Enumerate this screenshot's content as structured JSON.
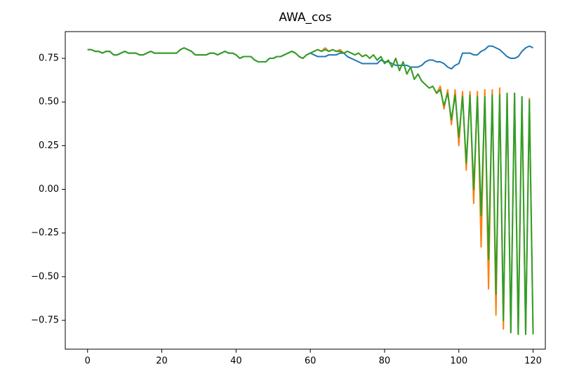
{
  "chart_data": {
    "type": "line",
    "title": "AWA_cos",
    "x": [
      0,
      1,
      2,
      3,
      4,
      5,
      6,
      7,
      8,
      9,
      10,
      11,
      12,
      13,
      14,
      15,
      16,
      17,
      18,
      19,
      20,
      21,
      22,
      23,
      24,
      25,
      26,
      27,
      28,
      29,
      30,
      31,
      32,
      33,
      34,
      35,
      36,
      37,
      38,
      39,
      40,
      41,
      42,
      43,
      44,
      45,
      46,
      47,
      48,
      49,
      50,
      51,
      52,
      53,
      54,
      55,
      56,
      57,
      58,
      59,
      60,
      61,
      62,
      63,
      64,
      65,
      66,
      67,
      68,
      69,
      70,
      71,
      72,
      73,
      74,
      75,
      76,
      77,
      78,
      79,
      80,
      81,
      82,
      83,
      84,
      85,
      86,
      87,
      88,
      89,
      90,
      91,
      92,
      93,
      94,
      95,
      96,
      97,
      98,
      99,
      100,
      101,
      102,
      103,
      104,
      105,
      106,
      107,
      108,
      109,
      110,
      111,
      112,
      113,
      114,
      115,
      116,
      117,
      118,
      119,
      120
    ],
    "series": [
      {
        "color": "#1f77b4",
        "values": [
          0.8,
          0.8,
          0.79,
          0.79,
          0.78,
          0.79,
          0.79,
          0.77,
          0.77,
          0.78,
          0.79,
          0.78,
          0.78,
          0.78,
          0.77,
          0.77,
          0.78,
          0.79,
          0.78,
          0.78,
          0.78,
          0.78,
          0.78,
          0.78,
          0.78,
          0.8,
          0.81,
          0.8,
          0.79,
          0.77,
          0.77,
          0.77,
          0.77,
          0.78,
          0.78,
          0.77,
          0.78,
          0.79,
          0.78,
          0.78,
          0.77,
          0.75,
          0.76,
          0.76,
          0.76,
          0.74,
          0.73,
          0.73,
          0.73,
          0.75,
          0.75,
          0.76,
          0.76,
          0.77,
          0.78,
          0.79,
          0.78,
          0.76,
          0.75,
          0.77,
          0.78,
          0.77,
          0.76,
          0.76,
          0.76,
          0.77,
          0.77,
          0.77,
          0.78,
          0.78,
          0.76,
          0.75,
          0.74,
          0.73,
          0.72,
          0.72,
          0.72,
          0.72,
          0.72,
          0.74,
          0.73,
          0.73,
          0.72,
          0.71,
          0.71,
          0.71,
          0.71,
          0.7,
          0.7,
          0.7,
          0.71,
          0.73,
          0.74,
          0.74,
          0.73,
          0.73,
          0.72,
          0.7,
          0.69,
          0.71,
          0.72,
          0.78,
          0.78,
          0.78,
          0.77,
          0.77,
          0.79,
          0.8,
          0.82,
          0.82,
          0.81,
          0.8,
          0.78,
          0.76,
          0.75,
          0.75,
          0.76,
          0.79,
          0.81,
          0.82,
          0.81
        ]
      },
      {
        "color": "#ff7f0e",
        "values": [
          0.8,
          0.8,
          0.79,
          0.79,
          0.78,
          0.79,
          0.79,
          0.77,
          0.77,
          0.78,
          0.79,
          0.78,
          0.78,
          0.78,
          0.77,
          0.77,
          0.78,
          0.79,
          0.78,
          0.78,
          0.78,
          0.78,
          0.78,
          0.78,
          0.78,
          0.8,
          0.81,
          0.8,
          0.79,
          0.77,
          0.77,
          0.77,
          0.77,
          0.78,
          0.78,
          0.77,
          0.78,
          0.79,
          0.78,
          0.78,
          0.77,
          0.75,
          0.76,
          0.76,
          0.76,
          0.74,
          0.73,
          0.73,
          0.73,
          0.75,
          0.75,
          0.76,
          0.76,
          0.77,
          0.78,
          0.79,
          0.78,
          0.76,
          0.75,
          0.77,
          0.78,
          0.79,
          0.8,
          0.79,
          0.81,
          0.79,
          0.8,
          0.79,
          0.8,
          0.78,
          0.79,
          0.78,
          0.77,
          0.78,
          0.76,
          0.77,
          0.75,
          0.77,
          0.74,
          0.76,
          0.72,
          0.74,
          0.7,
          0.75,
          0.68,
          0.73,
          0.66,
          0.7,
          0.63,
          0.66,
          0.62,
          0.6,
          0.58,
          0.59,
          0.55,
          0.59,
          0.46,
          0.57,
          0.37,
          0.57,
          0.25,
          0.56,
          0.11,
          0.56,
          -0.08,
          0.56,
          -0.33,
          0.57,
          -0.57,
          0.57,
          -0.72,
          0.58,
          -0.8,
          0.55,
          -0.82,
          0.55,
          -0.83,
          0.53,
          -0.83,
          0.52,
          -0.83
        ]
      },
      {
        "color": "#2ca02c",
        "values": [
          0.8,
          0.8,
          0.79,
          0.79,
          0.78,
          0.79,
          0.79,
          0.77,
          0.77,
          0.78,
          0.79,
          0.78,
          0.78,
          0.78,
          0.77,
          0.77,
          0.78,
          0.79,
          0.78,
          0.78,
          0.78,
          0.78,
          0.78,
          0.78,
          0.78,
          0.8,
          0.81,
          0.8,
          0.79,
          0.77,
          0.77,
          0.77,
          0.77,
          0.78,
          0.78,
          0.77,
          0.78,
          0.79,
          0.78,
          0.78,
          0.77,
          0.75,
          0.76,
          0.76,
          0.76,
          0.74,
          0.73,
          0.73,
          0.73,
          0.75,
          0.75,
          0.76,
          0.76,
          0.77,
          0.78,
          0.79,
          0.78,
          0.76,
          0.75,
          0.77,
          0.78,
          0.79,
          0.8,
          0.79,
          0.8,
          0.79,
          0.8,
          0.79,
          0.79,
          0.78,
          0.79,
          0.78,
          0.77,
          0.78,
          0.76,
          0.77,
          0.75,
          0.77,
          0.74,
          0.76,
          0.72,
          0.74,
          0.7,
          0.75,
          0.68,
          0.73,
          0.66,
          0.7,
          0.63,
          0.66,
          0.62,
          0.6,
          0.58,
          0.59,
          0.55,
          0.57,
          0.48,
          0.55,
          0.4,
          0.54,
          0.3,
          0.53,
          0.15,
          0.54,
          0.0,
          0.53,
          -0.15,
          0.53,
          -0.4,
          0.54,
          -0.6,
          0.54,
          -0.75,
          0.55,
          -0.82,
          0.55,
          -0.83,
          0.53,
          -0.83,
          0.51,
          -0.83
        ]
      }
    ],
    "xlim": [
      -6,
      123.3
    ],
    "ylim": [
      -0.915,
      0.903
    ],
    "xticks": [
      0,
      20,
      40,
      60,
      80,
      100,
      120
    ],
    "yticks": [
      {
        "value": 0.75,
        "label": "0.75"
      },
      {
        "value": 0.5,
        "label": "0.50"
      },
      {
        "value": 0.25,
        "label": "0.25"
      },
      {
        "value": 0,
        "label": "0.00"
      },
      {
        "value": -0.25,
        "label": "−0.25"
      },
      {
        "value": -0.5,
        "label": "−0.50"
      },
      {
        "value": -0.75,
        "label": "−0.75"
      }
    ]
  }
}
